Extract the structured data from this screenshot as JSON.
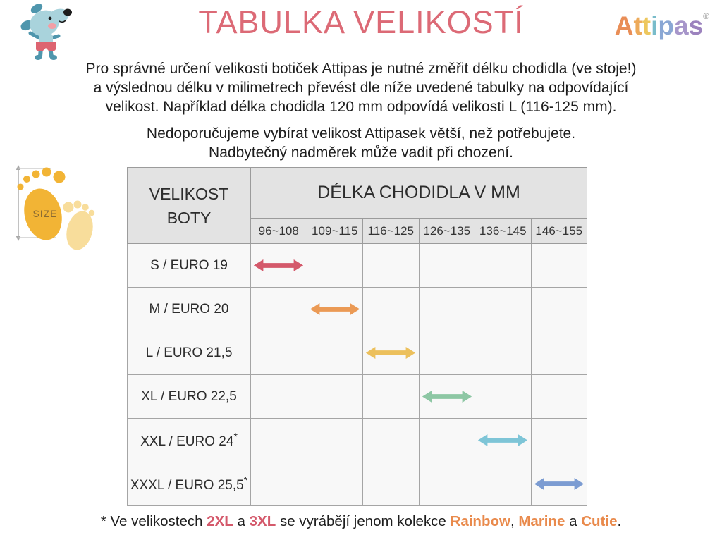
{
  "header": {
    "title": "TABULKA VELIKOSTÍ",
    "title_color": "#dc6a76",
    "logo_letters": [
      {
        "ch": "A",
        "color": "#e98e57"
      },
      {
        "ch": "t",
        "color": "#edaa5a"
      },
      {
        "ch": "t",
        "color": "#edc75e"
      },
      {
        "ch": "i",
        "color": "#79bcca"
      },
      {
        "ch": "p",
        "color": "#8aa7d4"
      },
      {
        "ch": "a",
        "color": "#a796ca"
      },
      {
        "ch": "s",
        "color": "#9c83be"
      }
    ],
    "registered_mark": "®"
  },
  "intro": {
    "line1": "Pro správné určení velikosti botiček Attipas je nutné změřit délku chodidla (ve stoje!)",
    "line2": "a výslednou délku v milimetrech převést dle níže uvedené tabulky na odpovídající",
    "line3": "velikost. Například délka chodidla 120 mm odpovídá velikosti L (116-125 mm)."
  },
  "warning": {
    "line1": "Nedoporučujeme vybírat velikost Attipasek větší, než potřebujete.",
    "line2": "Nadbytečný nadměrek může vadit při chození."
  },
  "size_icon": {
    "label": "SIZE"
  },
  "table": {
    "col1_header_line1": "VELIKOST",
    "col1_header_line2": "BOTY",
    "group_header": "DÉLKA CHODIDLA V MM",
    "ranges": [
      "96~108",
      "109~115",
      "116~125",
      "126~135",
      "136~145",
      "146~155"
    ],
    "rows": [
      {
        "label": "S / EURO 19",
        "asterisk": false,
        "arrow_col": 0,
        "arrow_color": "#d4596b"
      },
      {
        "label": "M / EURO 20",
        "asterisk": false,
        "arrow_col": 1,
        "arrow_color": "#eb9a55"
      },
      {
        "label": "L / EURO 21,5",
        "asterisk": false,
        "arrow_col": 2,
        "arrow_color": "#ecc05c"
      },
      {
        "label": "XL / EURO 22,5",
        "asterisk": false,
        "arrow_col": 3,
        "arrow_color": "#8dc7a4"
      },
      {
        "label": "XXL / EURO 24",
        "asterisk": true,
        "arrow_col": 4,
        "arrow_color": "#7ec5d7"
      },
      {
        "label": "XXXL / EURO 25,5",
        "asterisk": true,
        "arrow_col": 5,
        "arrow_color": "#7c9cd2"
      }
    ]
  },
  "footnote": {
    "parts": [
      {
        "text": "* Ve velikostech ",
        "color": "#1d1d1d",
        "bold": false
      },
      {
        "text": "2XL",
        "color": "#d4596b",
        "bold": true
      },
      {
        "text": " a ",
        "color": "#1d1d1d",
        "bold": false
      },
      {
        "text": "3XL",
        "color": "#d4596b",
        "bold": true
      },
      {
        "text": " se vyrábějí jenom kolekce ",
        "color": "#1d1d1d",
        "bold": false
      },
      {
        "text": "Rainbow",
        "color": "#e98a4c",
        "bold": true
      },
      {
        "text": ", ",
        "color": "#1d1d1d",
        "bold": false
      },
      {
        "text": "Marine",
        "color": "#e98a4c",
        "bold": true
      },
      {
        "text": " a ",
        "color": "#1d1d1d",
        "bold": false
      },
      {
        "text": "Cutie",
        "color": "#e98a4c",
        "bold": true
      },
      {
        "text": ".",
        "color": "#1d1d1d",
        "bold": false
      }
    ]
  }
}
